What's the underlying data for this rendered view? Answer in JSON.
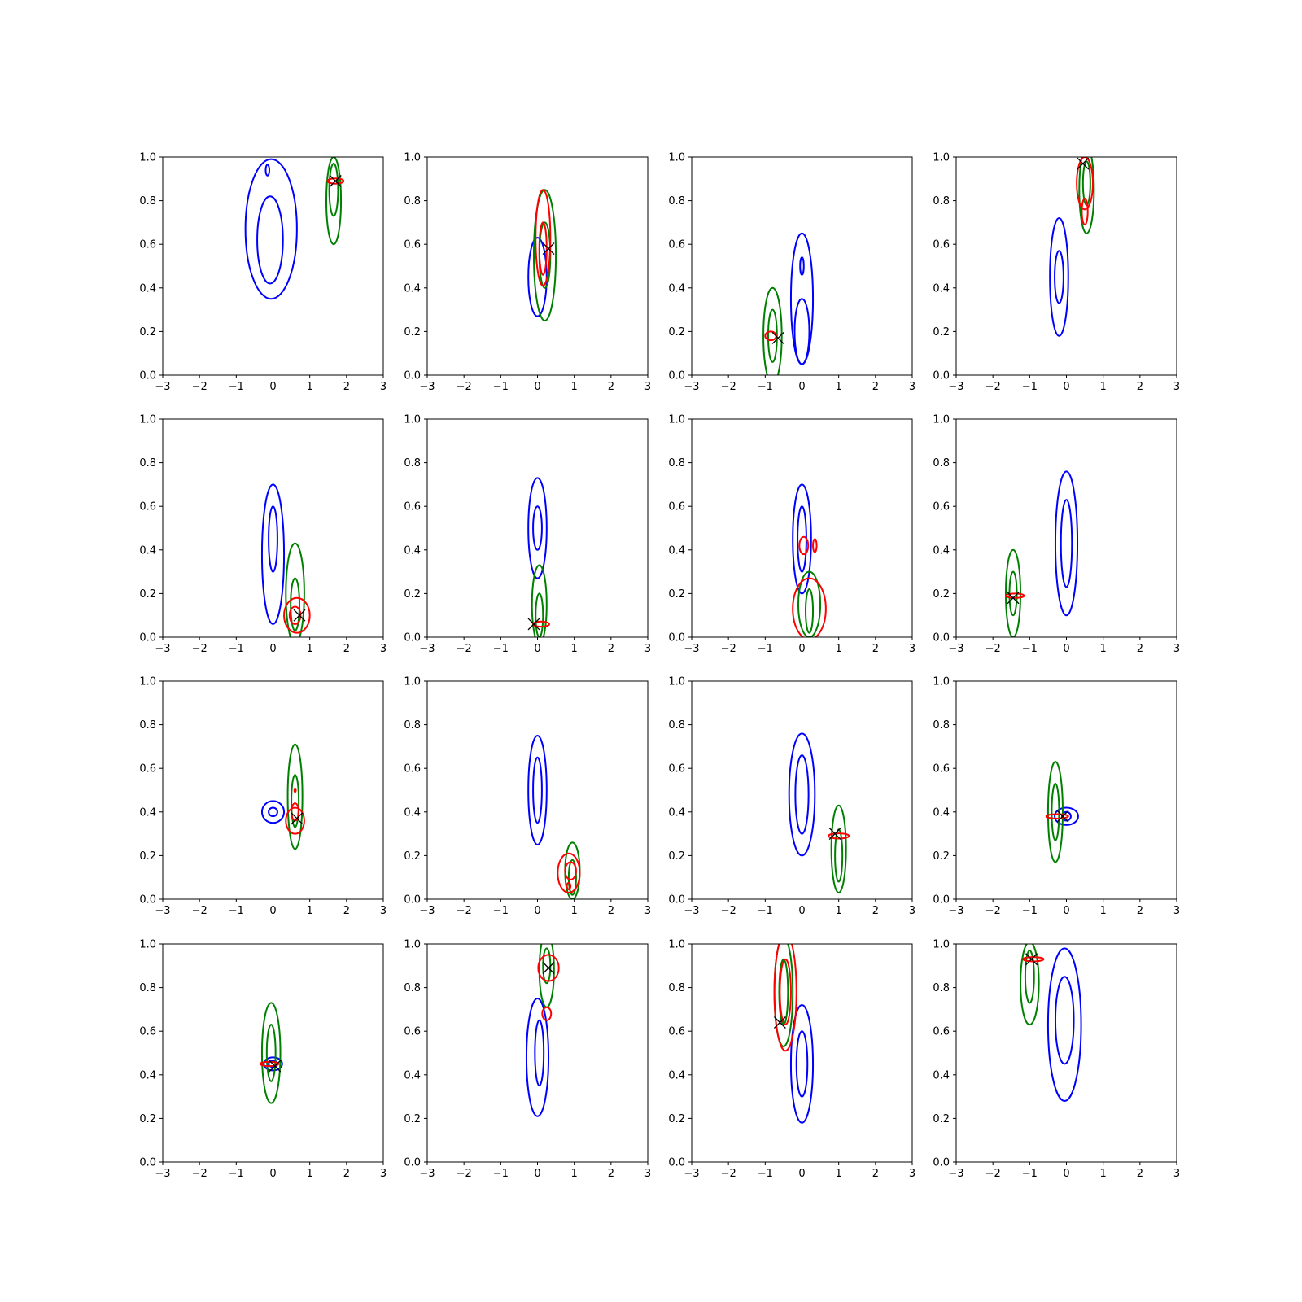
{
  "chart_data": {
    "type": "contour",
    "grid": "4x4",
    "xlim": [
      -3,
      3
    ],
    "ylim": [
      0,
      1
    ],
    "x_ticks": [
      "−3",
      "−2",
      "−1",
      "0",
      "1",
      "2",
      "3"
    ],
    "y_ticks": [
      "0.0",
      "0.2",
      "0.4",
      "0.6",
      "0.8",
      "1.0"
    ],
    "series_colors": {
      "blue": "#0000ff",
      "green": "#008000",
      "red": "#ff0000",
      "marker": "#000000"
    },
    "panels": [
      {
        "blue": [
          {
            "cx": -0.05,
            "cy": 0.67,
            "rx": 0.7,
            "ry": 0.32
          },
          {
            "cx": -0.08,
            "cy": 0.62,
            "rx": 0.35,
            "ry": 0.2
          },
          {
            "cx": -0.15,
            "cy": 0.94,
            "rx": 0.05,
            "ry": 0.025
          }
        ],
        "green": [
          {
            "cx": 1.65,
            "cy": 0.8,
            "rx": 0.2,
            "ry": 0.2
          },
          {
            "cx": 1.65,
            "cy": 0.85,
            "rx": 0.12,
            "ry": 0.12
          }
        ],
        "red": [
          {
            "cx": 1.7,
            "cy": 0.89,
            "rx": 0.22,
            "ry": 0.012
          }
        ],
        "marker": [
          1.7,
          0.89
        ]
      },
      {
        "blue": [
          {
            "cx": 0.0,
            "cy": 0.45,
            "rx": 0.25,
            "ry": 0.18
          }
        ],
        "green": [
          {
            "cx": 0.2,
            "cy": 0.55,
            "rx": 0.3,
            "ry": 0.3
          },
          {
            "cx": 0.2,
            "cy": 0.55,
            "rx": 0.15,
            "ry": 0.15
          }
        ],
        "red": [
          {
            "cx": 0.15,
            "cy": 0.63,
            "rx": 0.2,
            "ry": 0.22
          },
          {
            "cx": 0.15,
            "cy": 0.58,
            "rx": 0.1,
            "ry": 0.12
          }
        ],
        "marker": [
          0.3,
          0.58
        ]
      },
      {
        "blue": [
          {
            "cx": 0.0,
            "cy": 0.35,
            "rx": 0.3,
            "ry": 0.3
          },
          {
            "cx": 0.0,
            "cy": 0.2,
            "rx": 0.2,
            "ry": 0.15
          },
          {
            "cx": 0.0,
            "cy": 0.5,
            "rx": 0.05,
            "ry": 0.04
          }
        ],
        "green": [
          {
            "cx": -0.8,
            "cy": 0.18,
            "rx": 0.25,
            "ry": 0.22
          },
          {
            "cx": -0.8,
            "cy": 0.18,
            "rx": 0.12,
            "ry": 0.12
          }
        ],
        "red": [
          {
            "cx": -0.85,
            "cy": 0.18,
            "rx": 0.15,
            "ry": 0.02
          }
        ],
        "marker": [
          -0.65,
          0.17
        ]
      },
      {
        "blue": [
          {
            "cx": -0.2,
            "cy": 0.45,
            "rx": 0.25,
            "ry": 0.27
          },
          {
            "cx": -0.2,
            "cy": 0.45,
            "rx": 0.12,
            "ry": 0.12
          }
        ],
        "green": [
          {
            "cx": 0.55,
            "cy": 0.85,
            "rx": 0.2,
            "ry": 0.2
          },
          {
            "cx": 0.55,
            "cy": 0.88,
            "rx": 0.1,
            "ry": 0.1
          }
        ],
        "red": [
          {
            "cx": 0.5,
            "cy": 0.88,
            "rx": 0.22,
            "ry": 0.12
          },
          {
            "cx": 0.5,
            "cy": 0.75,
            "rx": 0.08,
            "ry": 0.06
          }
        ],
        "marker": [
          0.45,
          0.97
        ]
      },
      {
        "blue": [
          {
            "cx": 0.0,
            "cy": 0.38,
            "rx": 0.3,
            "ry": 0.32
          },
          {
            "cx": 0.0,
            "cy": 0.45,
            "rx": 0.12,
            "ry": 0.15
          }
        ],
        "green": [
          {
            "cx": 0.6,
            "cy": 0.2,
            "rx": 0.25,
            "ry": 0.23
          },
          {
            "cx": 0.6,
            "cy": 0.15,
            "rx": 0.12,
            "ry": 0.12
          }
        ],
        "red": [
          {
            "cx": 0.65,
            "cy": 0.1,
            "rx": 0.35,
            "ry": 0.08
          },
          {
            "cx": 0.6,
            "cy": 0.1,
            "rx": 0.15,
            "ry": 0.04
          }
        ],
        "marker": [
          0.72,
          0.1
        ]
      },
      {
        "blue": [
          {
            "cx": 0.0,
            "cy": 0.5,
            "rx": 0.25,
            "ry": 0.23
          },
          {
            "cx": 0.0,
            "cy": 0.5,
            "rx": 0.12,
            "ry": 0.1
          }
        ],
        "green": [
          {
            "cx": 0.05,
            "cy": 0.15,
            "rx": 0.2,
            "ry": 0.18
          },
          {
            "cx": 0.05,
            "cy": 0.1,
            "rx": 0.1,
            "ry": 0.1
          }
        ],
        "red": [
          {
            "cx": 0.1,
            "cy": 0.06,
            "rx": 0.22,
            "ry": 0.012
          }
        ],
        "marker": [
          -0.1,
          0.06
        ]
      },
      {
        "blue": [
          {
            "cx": 0.0,
            "cy": 0.45,
            "rx": 0.25,
            "ry": 0.25
          },
          {
            "cx": 0.0,
            "cy": 0.45,
            "rx": 0.12,
            "ry": 0.15
          }
        ],
        "green": [
          {
            "cx": 0.2,
            "cy": 0.15,
            "rx": 0.3,
            "ry": 0.15
          },
          {
            "cx": 0.2,
            "cy": 0.12,
            "rx": 0.1,
            "ry": 0.1
          }
        ],
        "red": [
          {
            "cx": 0.2,
            "cy": 0.13,
            "rx": 0.45,
            "ry": 0.14
          },
          {
            "cx": 0.05,
            "cy": 0.42,
            "rx": 0.12,
            "ry": 0.04
          },
          {
            "cx": 0.35,
            "cy": 0.42,
            "rx": 0.05,
            "ry": 0.03
          }
        ],
        "marker": null
      },
      {
        "blue": [
          {
            "cx": 0.0,
            "cy": 0.43,
            "rx": 0.3,
            "ry": 0.33
          },
          {
            "cx": 0.0,
            "cy": 0.43,
            "rx": 0.15,
            "ry": 0.2
          }
        ],
        "green": [
          {
            "cx": -1.45,
            "cy": 0.2,
            "rx": 0.2,
            "ry": 0.2
          },
          {
            "cx": -1.45,
            "cy": 0.2,
            "rx": 0.1,
            "ry": 0.1
          }
        ],
        "red": [
          {
            "cx": -1.4,
            "cy": 0.19,
            "rx": 0.25,
            "ry": 0.01
          }
        ],
        "marker": [
          -1.45,
          0.18
        ]
      },
      {
        "blue": [
          {
            "cx": 0.0,
            "cy": 0.4,
            "rx": 0.3,
            "ry": 0.05
          },
          {
            "cx": 0.0,
            "cy": 0.4,
            "rx": 0.12,
            "ry": 0.02
          }
        ],
        "green": [
          {
            "cx": 0.6,
            "cy": 0.47,
            "rx": 0.2,
            "ry": 0.24
          },
          {
            "cx": 0.6,
            "cy": 0.45,
            "rx": 0.1,
            "ry": 0.12
          }
        ],
        "red": [
          {
            "cx": 0.6,
            "cy": 0.36,
            "rx": 0.25,
            "ry": 0.06
          },
          {
            "cx": 0.6,
            "cy": 0.4,
            "rx": 0.1,
            "ry": 0.04
          },
          {
            "cx": 0.6,
            "cy": 0.5,
            "rx": 0.02,
            "ry": 0.008
          }
        ],
        "marker": [
          0.65,
          0.37
        ]
      },
      {
        "blue": [
          {
            "cx": 0.0,
            "cy": 0.5,
            "rx": 0.25,
            "ry": 0.25
          },
          {
            "cx": 0.0,
            "cy": 0.5,
            "rx": 0.12,
            "ry": 0.15
          }
        ],
        "green": [
          {
            "cx": 0.95,
            "cy": 0.13,
            "rx": 0.2,
            "ry": 0.13
          },
          {
            "cx": 0.95,
            "cy": 0.1,
            "rx": 0.1,
            "ry": 0.08
          }
        ],
        "red": [
          {
            "cx": 0.85,
            "cy": 0.12,
            "rx": 0.3,
            "ry": 0.09
          },
          {
            "cx": 0.9,
            "cy": 0.13,
            "rx": 0.15,
            "ry": 0.04
          },
          {
            "cx": 0.85,
            "cy": 0.06,
            "rx": 0.05,
            "ry": 0.015
          }
        ],
        "marker": null
      },
      {
        "blue": [
          {
            "cx": 0.0,
            "cy": 0.48,
            "rx": 0.35,
            "ry": 0.28
          },
          {
            "cx": 0.0,
            "cy": 0.48,
            "rx": 0.18,
            "ry": 0.18
          }
        ],
        "green": [
          {
            "cx": 1.0,
            "cy": 0.23,
            "rx": 0.2,
            "ry": 0.2
          },
          {
            "cx": 1.0,
            "cy": 0.2,
            "rx": 0.1,
            "ry": 0.12
          }
        ],
        "red": [
          {
            "cx": 1.0,
            "cy": 0.29,
            "rx": 0.28,
            "ry": 0.012
          }
        ],
        "marker": [
          0.9,
          0.3
        ]
      },
      {
        "blue": [
          {
            "cx": 0.0,
            "cy": 0.38,
            "rx": 0.32,
            "ry": 0.04
          },
          {
            "cx": 0.0,
            "cy": 0.38,
            "rx": 0.12,
            "ry": 0.02
          }
        ],
        "green": [
          {
            "cx": -0.3,
            "cy": 0.4,
            "rx": 0.2,
            "ry": 0.23
          },
          {
            "cx": -0.3,
            "cy": 0.4,
            "rx": 0.1,
            "ry": 0.13
          }
        ],
        "red": [
          {
            "cx": -0.25,
            "cy": 0.38,
            "rx": 0.3,
            "ry": 0.01
          }
        ],
        "marker": [
          -0.1,
          0.38
        ]
      },
      {
        "blue": [
          {
            "cx": 0.0,
            "cy": 0.45,
            "rx": 0.25,
            "ry": 0.03
          },
          {
            "cx": 0.0,
            "cy": 0.45,
            "rx": 0.12,
            "ry": 0.015
          }
        ],
        "green": [
          {
            "cx": -0.05,
            "cy": 0.5,
            "rx": 0.25,
            "ry": 0.23
          },
          {
            "cx": -0.05,
            "cy": 0.5,
            "rx": 0.12,
            "ry": 0.13
          }
        ],
        "red": [
          {
            "cx": -0.1,
            "cy": 0.45,
            "rx": 0.25,
            "ry": 0.01
          }
        ],
        "marker": [
          0.05,
          0.44
        ]
      },
      {
        "blue": [
          {
            "cx": 0.0,
            "cy": 0.48,
            "rx": 0.3,
            "ry": 0.27
          },
          {
            "cx": 0.05,
            "cy": 0.5,
            "rx": 0.12,
            "ry": 0.15
          }
        ],
        "green": [
          {
            "cx": 0.25,
            "cy": 0.88,
            "rx": 0.2,
            "ry": 0.17
          },
          {
            "cx": 0.25,
            "cy": 0.9,
            "rx": 0.1,
            "ry": 0.08
          }
        ],
        "red": [
          {
            "cx": 0.3,
            "cy": 0.89,
            "rx": 0.28,
            "ry": 0.06
          },
          {
            "cx": 0.25,
            "cy": 0.68,
            "rx": 0.12,
            "ry": 0.03
          }
        ],
        "marker": [
          0.3,
          0.89
        ]
      },
      {
        "blue": [
          {
            "cx": 0.0,
            "cy": 0.45,
            "rx": 0.3,
            "ry": 0.27
          },
          {
            "cx": 0.0,
            "cy": 0.45,
            "rx": 0.15,
            "ry": 0.15
          }
        ],
        "green": [
          {
            "cx": -0.5,
            "cy": 0.78,
            "rx": 0.25,
            "ry": 0.25
          },
          {
            "cx": -0.5,
            "cy": 0.78,
            "rx": 0.12,
            "ry": 0.15
          }
        ],
        "red": [
          {
            "cx": -0.45,
            "cy": 0.78,
            "rx": 0.3,
            "ry": 0.27
          },
          {
            "cx": -0.45,
            "cy": 0.78,
            "rx": 0.15,
            "ry": 0.15
          }
        ],
        "marker": [
          -0.6,
          0.64
        ]
      },
      {
        "blue": [
          {
            "cx": -0.05,
            "cy": 0.63,
            "rx": 0.45,
            "ry": 0.35
          },
          {
            "cx": -0.05,
            "cy": 0.65,
            "rx": 0.25,
            "ry": 0.2
          }
        ],
        "green": [
          {
            "cx": -1.0,
            "cy": 0.82,
            "rx": 0.25,
            "ry": 0.19
          },
          {
            "cx": -1.0,
            "cy": 0.85,
            "rx": 0.12,
            "ry": 0.12
          }
        ],
        "red": [
          {
            "cx": -0.9,
            "cy": 0.93,
            "rx": 0.28,
            "ry": 0.01
          }
        ],
        "marker": [
          -0.95,
          0.93
        ]
      }
    ]
  }
}
